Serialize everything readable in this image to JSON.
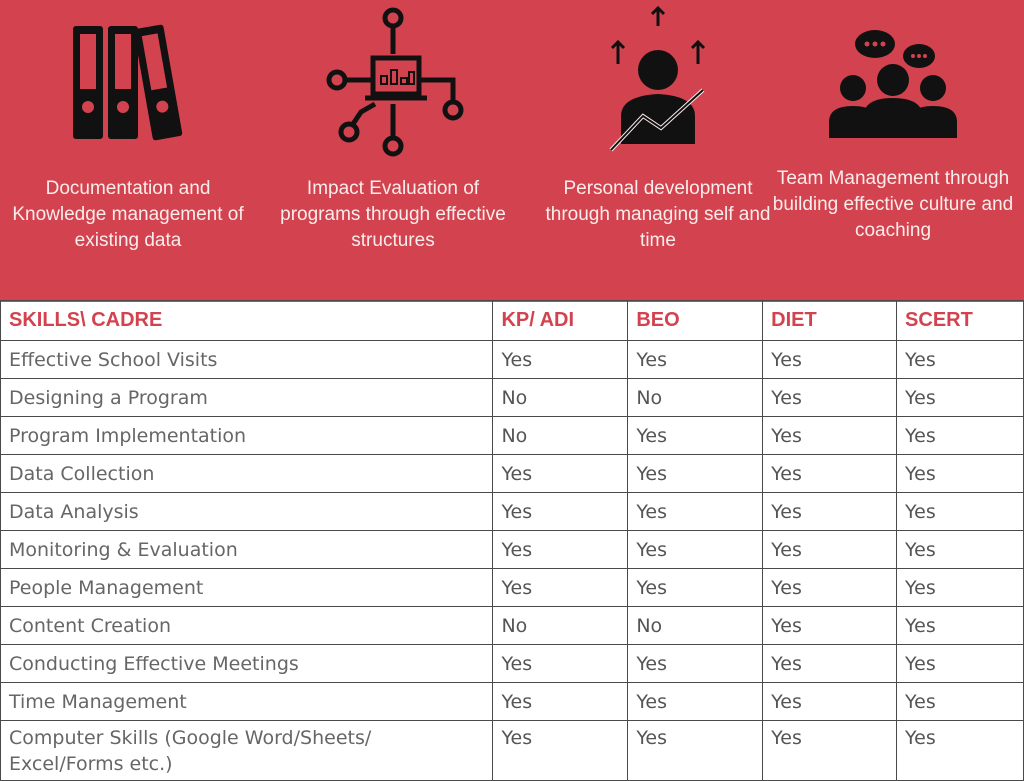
{
  "colors": {
    "banner": "#d2434f",
    "header_text": "#d2434f",
    "cell_text": "#666666"
  },
  "themes": [
    {
      "icon": "binders-icon",
      "caption": "Documentation and Knowledge management of existing data"
    },
    {
      "icon": "network-laptop-icon",
      "caption": "Impact Evaluation of programs through effective structures"
    },
    {
      "icon": "person-growth-icon",
      "caption": "Personal development through managing self and time"
    },
    {
      "icon": "team-chat-icon",
      "caption": "Team Management through building effective culture and coaching"
    }
  ],
  "table": {
    "headers": [
      "SKILLS\\ CADRE",
      "KP/ ADI",
      "BEO",
      "DIET",
      "SCERT"
    ],
    "rows": [
      [
        "Effective School Visits",
        "Yes",
        "Yes",
        "Yes",
        "Yes"
      ],
      [
        "Designing a Program",
        "No",
        "No",
        "Yes",
        "Yes"
      ],
      [
        "Program Implementation",
        "No",
        "Yes",
        "Yes",
        "Yes"
      ],
      [
        "Data Collection",
        "Yes",
        "Yes",
        "Yes",
        "Yes"
      ],
      [
        "Data Analysis",
        "Yes",
        "Yes",
        "Yes",
        "Yes"
      ],
      [
        "Monitoring & Evaluation",
        "Yes",
        "Yes",
        "Yes",
        "Yes"
      ],
      [
        "People Management",
        "Yes",
        "Yes",
        "Yes",
        "Yes"
      ],
      [
        "Content Creation",
        "No",
        "No",
        "Yes",
        "Yes"
      ],
      [
        "Conducting Effective Meetings",
        "Yes",
        "Yes",
        "Yes",
        "Yes"
      ],
      [
        "Time Management",
        "Yes",
        "Yes",
        "Yes",
        "Yes"
      ],
      [
        "Computer Skills (Google Word/Sheets/ Excel/Forms etc.)",
        "Yes",
        "Yes",
        "Yes",
        "Yes"
      ]
    ]
  }
}
